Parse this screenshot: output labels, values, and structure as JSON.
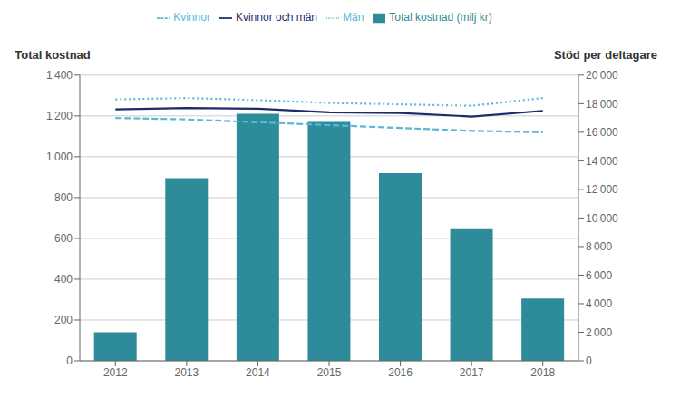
{
  "chart_data": {
    "type": "bar",
    "categories": [
      "2012",
      "2013",
      "2014",
      "2015",
      "2016",
      "2017",
      "2018"
    ],
    "series": [
      {
        "name": "Total kostnad (milj kr)",
        "type": "bar",
        "color": "#2E8B9A",
        "values": [
          140,
          895,
          1210,
          1170,
          920,
          645,
          305
        ]
      },
      {
        "name": "Kvinnor och män",
        "type": "line",
        "axis": "y2",
        "color": "#1B2A6B",
        "line_style": "solid",
        "values": [
          17600,
          17700,
          17650,
          17400,
          17350,
          17100,
          17500
        ]
      },
      {
        "name": "Kvinnor",
        "type": "line",
        "axis": "y2",
        "color": "#5BB8D4",
        "line_style": "dashed",
        "values": [
          17000,
          16900,
          16700,
          16500,
          16300,
          16100,
          16000
        ]
      },
      {
        "name": "Män",
        "type": "line",
        "axis": "y2",
        "color": "#5BB8D4",
        "line_style": "dotted",
        "values": [
          18300,
          18400,
          18250,
          18050,
          17950,
          17850,
          18400
        ]
      }
    ],
    "ylabel": "Total kostnad",
    "y2label": "Stöd per deltagare",
    "ylim": [
      0,
      1400
    ],
    "yticks": [
      0,
      200,
      400,
      600,
      800,
      {
        "value": 1000,
        "label": "1 000"
      },
      {
        "value": 1200,
        "label": "1 200"
      },
      {
        "value": 1400,
        "label": "1 400"
      }
    ],
    "y2lim": [
      0,
      20000
    ],
    "y2ticks": [
      0,
      {
        "value": 2000,
        "label": "2 000"
      },
      {
        "value": 4000,
        "label": "4 000"
      },
      {
        "value": 6000,
        "label": "6 000"
      },
      {
        "value": 8000,
        "label": "8 000"
      },
      {
        "value": 10000,
        "label": "10 000"
      },
      {
        "value": 12000,
        "label": "12 000"
      },
      {
        "value": 14000,
        "label": "14 000"
      },
      {
        "value": 16000,
        "label": "16 000"
      },
      {
        "value": 18000,
        "label": "18 000"
      },
      {
        "value": 20000,
        "label": "20 000"
      }
    ],
    "grid": true,
    "legend": "top"
  }
}
